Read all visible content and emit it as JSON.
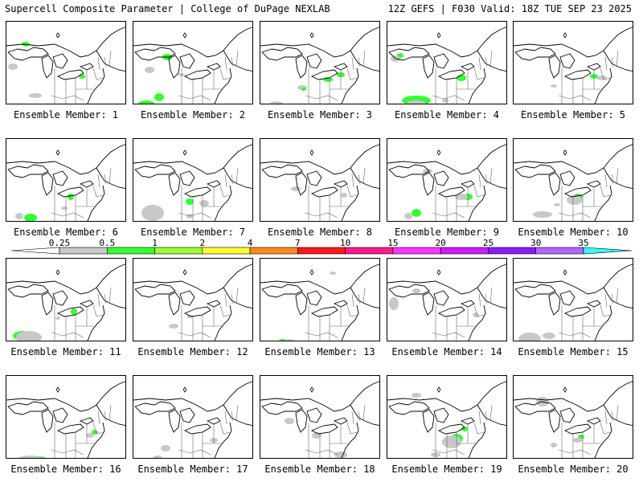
{
  "header": {
    "left": "Supercell Composite Parameter | College of DuPage NEXLAB",
    "right": "12Z GEFS | F030 Valid: 18Z TUE SEP 23 2025"
  },
  "members": [
    "Ensemble Member: 1",
    "Ensemble Member: 2",
    "Ensemble Member: 3",
    "Ensemble Member: 4",
    "Ensemble Member: 5",
    "Ensemble Member: 6",
    "Ensemble Member: 7",
    "Ensemble Member: 8",
    "Ensemble Member: 9",
    "Ensemble Member: 10",
    "Ensemble Member: 11",
    "Ensemble Member: 12",
    "Ensemble Member: 13",
    "Ensemble Member: 14",
    "Ensemble Member: 15",
    "Ensemble Member: 16",
    "Ensemble Member: 17",
    "Ensemble Member: 18",
    "Ensemble Member: 19",
    "Ensemble Member: 20"
  ],
  "colorbar": {
    "ticks": [
      "0.25",
      "0.5",
      "1",
      "2",
      "4",
      "7",
      "10",
      "15",
      "20",
      "25",
      "30",
      "35"
    ],
    "colors": [
      "#ffffff",
      "#c8c8c8",
      "#33ff33",
      "#99ff33",
      "#ffff33",
      "#ff8c1a",
      "#ff1a1a",
      "#ff1a8c",
      "#ff33ff",
      "#d11aff",
      "#8c1aff",
      "#b266ff",
      "#33ffff"
    ]
  },
  "colors": {
    "background": "#ffffff",
    "border": "#000000",
    "low_shade": "#c8c8c8",
    "mid_shade": "#33ff33"
  }
}
